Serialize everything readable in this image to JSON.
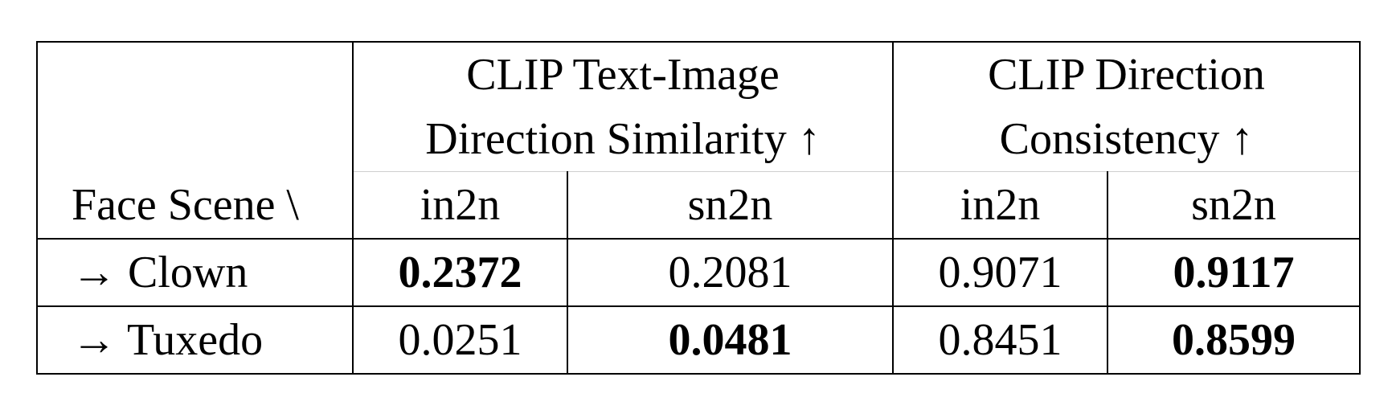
{
  "table": {
    "group_headers": [
      {
        "lines": [
          "CLIP Text-Image",
          "Direction Similarity ↑"
        ]
      },
      {
        "lines": [
          "CLIP Direction",
          "Consistency ↑"
        ]
      }
    ],
    "corner_label": "Face Scene \\",
    "sub_headers": [
      "in2n",
      "sn2n",
      "in2n",
      "sn2n"
    ],
    "rows": [
      {
        "label": "→ Clown",
        "values": [
          "0.2372",
          "0.2081",
          "0.9071",
          "0.9117"
        ],
        "bold": [
          true,
          false,
          false,
          true
        ]
      },
      {
        "label": "→ Tuxedo",
        "values": [
          "0.0251",
          "0.0481",
          "0.8451",
          "0.8599"
        ],
        "bold": [
          false,
          true,
          false,
          true
        ]
      }
    ]
  }
}
